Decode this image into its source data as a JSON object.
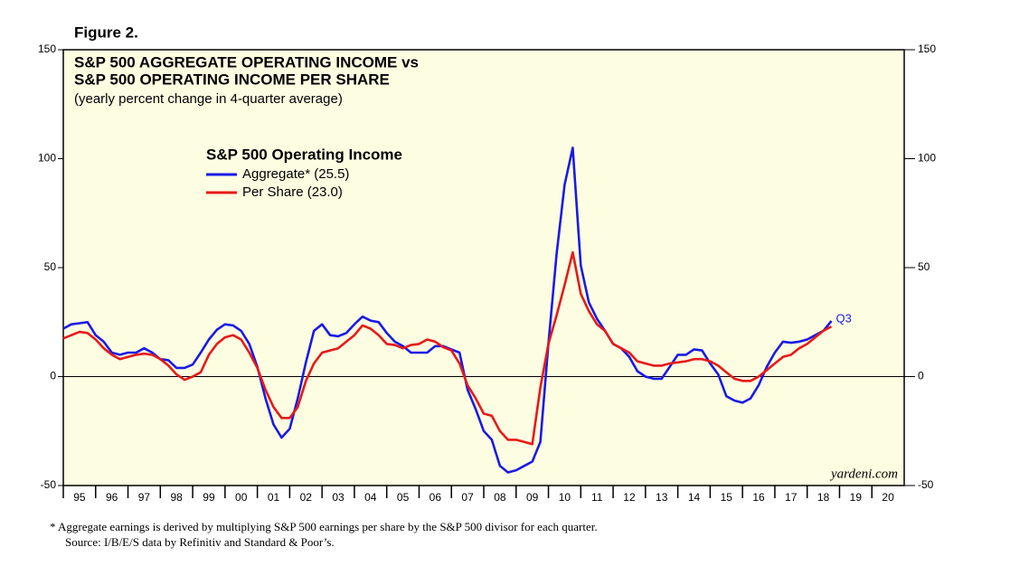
{
  "chart_data": {
    "type": "line",
    "figure_label": "Figure 2.",
    "title": [
      "S&P 500 AGGREGATE OPERATING  INCOME vs",
      "S&P 500 OPERATING INCOME PER SHARE"
    ],
    "subtitle": "(yearly percent change in 4-quarter average)",
    "legend_title": "S&P 500 Operating Income",
    "legend": "upper left",
    "annotation": "Q3",
    "watermark": "yardeni.com",
    "footnotes": [
      "*  Aggregate earnings is  derived by multiplying S&P 500 earnings per share by the S&P 500 divisor for each quarter.",
      "Source: I/B/E/S data by Refinitiv and Standard & Poor’s."
    ],
    "xlim": [
      1995,
      2021
    ],
    "xticks": [
      {
        "value": 1995,
        "label": "95"
      },
      {
        "value": 1996,
        "label": "96"
      },
      {
        "value": 1997,
        "label": "97"
      },
      {
        "value": 1998,
        "label": "98"
      },
      {
        "value": 1999,
        "label": "99"
      },
      {
        "value": 2000,
        "label": "00"
      },
      {
        "value": 2001,
        "label": "01"
      },
      {
        "value": 2002,
        "label": "02"
      },
      {
        "value": 2003,
        "label": "03"
      },
      {
        "value": 2004,
        "label": "04"
      },
      {
        "value": 2005,
        "label": "05"
      },
      {
        "value": 2006,
        "label": "06"
      },
      {
        "value": 2007,
        "label": "07"
      },
      {
        "value": 2008,
        "label": "08"
      },
      {
        "value": 2009,
        "label": "09"
      },
      {
        "value": 2010,
        "label": "10"
      },
      {
        "value": 2011,
        "label": "11"
      },
      {
        "value": 2012,
        "label": "12"
      },
      {
        "value": 2013,
        "label": "13"
      },
      {
        "value": 2014,
        "label": "14"
      },
      {
        "value": 2015,
        "label": "15"
      },
      {
        "value": 2016,
        "label": "16"
      },
      {
        "value": 2017,
        "label": "17"
      },
      {
        "value": 2018,
        "label": "18"
      },
      {
        "value": 2019,
        "label": "19"
      },
      {
        "value": 2020,
        "label": "20"
      }
    ],
    "ylim": [
      -50,
      150
    ],
    "yticks": [
      -50,
      0,
      50,
      100,
      150
    ],
    "zero_line": true,
    "x": [
      1995,
      1995.25,
      1995.5,
      1995.75,
      1996,
      1996.25,
      1996.5,
      1996.75,
      1997,
      1997.25,
      1997.5,
      1997.75,
      1998,
      1998.25,
      1998.5,
      1998.75,
      1999,
      1999.25,
      1999.5,
      1999.75,
      2000,
      2000.25,
      2000.5,
      2000.75,
      2001,
      2001.25,
      2001.5,
      2001.75,
      2002,
      2002.25,
      2002.5,
      2002.75,
      2003,
      2003.25,
      2003.5,
      2003.75,
      2004,
      2004.25,
      2004.5,
      2004.75,
      2005,
      2005.25,
      2005.5,
      2005.75,
      2006,
      2006.25,
      2006.5,
      2006.75,
      2007,
      2007.25,
      2007.5,
      2007.75,
      2008,
      2008.25,
      2008.5,
      2008.75,
      2009,
      2009.25,
      2009.5,
      2009.75,
      2010,
      2010.25,
      2010.5,
      2010.75,
      2011,
      2011.25,
      2011.5,
      2011.75,
      2012,
      2012.25,
      2012.5,
      2012.75,
      2013,
      2013.25,
      2013.5,
      2013.75,
      2014,
      2014.25,
      2014.5,
      2014.75,
      2015,
      2015.25,
      2015.5,
      2015.75,
      2016,
      2016.25,
      2016.5,
      2016.75,
      2017,
      2017.25,
      2017.5,
      2017.75,
      2018,
      2018.25,
      2018.5,
      2018.75
    ],
    "series": [
      {
        "name": "Aggregate* (25.5)",
        "color": "#1a1ae6",
        "values": [
          22,
          24,
          24.5,
          25,
          19,
          16,
          11,
          10,
          11,
          11,
          13,
          11,
          8,
          7.5,
          4,
          4,
          5.5,
          11,
          17,
          21.5,
          24,
          23.5,
          21,
          15,
          4.5,
          -10,
          -22,
          -28,
          -24,
          -10,
          6.5,
          21,
          24,
          19,
          18.5,
          20,
          24,
          27.5,
          25.7,
          25,
          20,
          16,
          14,
          11,
          11,
          11,
          14,
          14,
          12.5,
          11,
          -6,
          -15,
          -25,
          -29,
          -41,
          -44,
          -43,
          -41,
          -39,
          -30,
          15,
          56,
          88,
          105,
          51,
          34,
          26.5,
          21,
          15,
          13,
          9,
          2.5,
          0,
          -1,
          -1,
          4.5,
          10,
          10,
          12.5,
          12,
          6,
          1,
          -9,
          -11,
          -12,
          -10,
          -4,
          4.5,
          11,
          16,
          15.5,
          16,
          17,
          19,
          21,
          25.5
        ]
      },
      {
        "name": "Per Share (23.0)",
        "color": "#e61a1a",
        "values": [
          17.5,
          19,
          20.5,
          20,
          17,
          13,
          10,
          8,
          9,
          10,
          10.5,
          10,
          8,
          5,
          1,
          -1.5,
          0,
          2,
          10,
          15,
          18,
          19,
          17,
          11,
          4,
          -6,
          -14,
          -19,
          -19,
          -14,
          -2,
          6,
          11,
          12,
          13,
          16,
          19,
          23.5,
          22,
          19,
          15,
          14.5,
          13,
          14.5,
          15,
          17,
          16,
          13.5,
          12,
          6,
          -4,
          -10,
          -17,
          -18,
          -25,
          -29,
          -29,
          -30,
          -31,
          -5,
          15,
          28,
          42,
          57,
          38,
          30,
          24,
          21,
          15,
          13,
          11,
          7,
          6,
          5,
          5,
          6,
          6.5,
          7,
          8,
          8,
          7,
          5,
          2,
          -1,
          -2,
          -2,
          0,
          3,
          6,
          9,
          10,
          13,
          15,
          18,
          21,
          23
        ]
      }
    ]
  }
}
